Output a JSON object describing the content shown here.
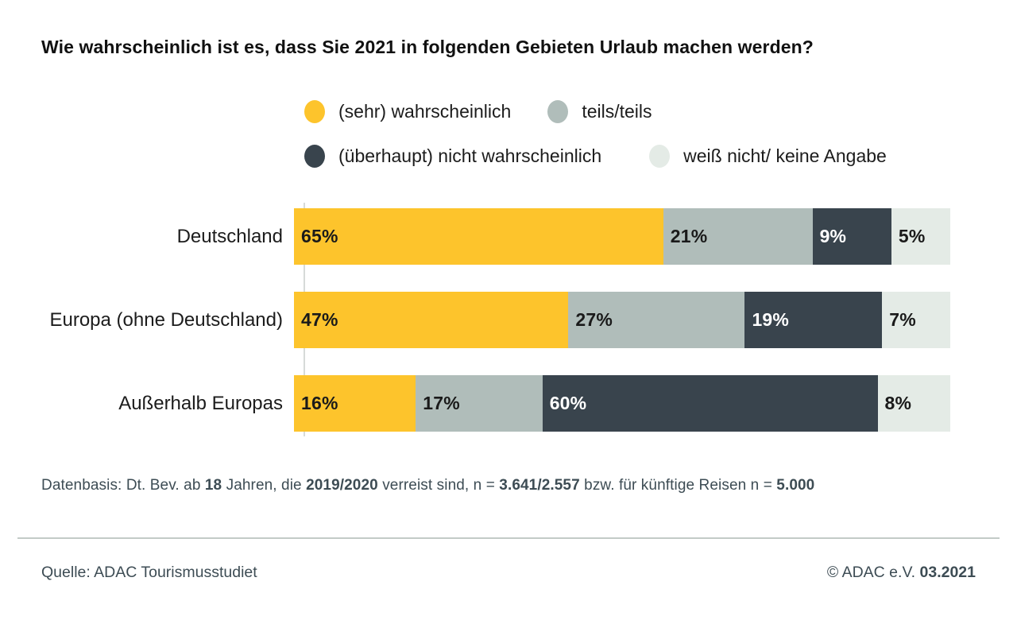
{
  "title": "Wie wahrscheinlich ist es, dass Sie 2021 in folgenden Gebieten Urlaub machen werden?",
  "colors": {
    "yellow": "#fdc42c",
    "gray": "#b0bdba",
    "dark": "#39444d",
    "light": "#e4ebe6",
    "axis": "#d7dbd9",
    "divider": "#c3cbc7",
    "footer_text": "#3d4c54"
  },
  "legend": {
    "rows": [
      [
        {
          "label": "(sehr) wahrscheinlich",
          "color_key": "yellow"
        },
        {
          "label": "teils/teils",
          "color_key": "gray"
        }
      ],
      [
        {
          "label": "(überhaupt) nicht wahrscheinlich",
          "color_key": "dark"
        },
        {
          "label": "weiß nicht/ keine Angabe",
          "color_key": "light"
        }
      ]
    ]
  },
  "chart_data": {
    "type": "bar",
    "orientation": "horizontal",
    "stacked": true,
    "title": "Wie wahrscheinlich ist es, dass Sie 2021 in folgenden Gebieten Urlaub machen werden?",
    "categories": [
      "Deutschland",
      "Europa (ohne Deutschland)",
      "Außerhalb Europas"
    ],
    "series": [
      {
        "name": "(sehr) wahrscheinlich",
        "color": "#fdc42c",
        "text_color": "#1a1a1a",
        "values": [
          65,
          47,
          16
        ]
      },
      {
        "name": "teils/teils",
        "color": "#b0bdba",
        "text_color": "#1a1a1a",
        "values": [
          21,
          27,
          17
        ]
      },
      {
        "name": "(überhaupt) nicht wahrscheinlich",
        "color": "#39444d",
        "text_color": "#ffffff",
        "values": [
          9,
          19,
          60
        ]
      },
      {
        "name": "weiß nicht/ keine Angabe",
        "color": "#e4ebe6",
        "text_color": "#1a1a1a",
        "values": [
          5,
          7,
          8
        ]
      }
    ],
    "value_suffix": "%",
    "xlim": [
      0,
      100
    ],
    "grid": false,
    "legend_position": "top"
  },
  "footnote": {
    "segments": [
      {
        "text": "Datenbasis: Dt. Bev. ab ",
        "bold": false
      },
      {
        "text": "18",
        "bold": true
      },
      {
        "text": " Jahren, die ",
        "bold": false
      },
      {
        "text": "2019/2020",
        "bold": true
      },
      {
        "text": " verreist sind, n = ",
        "bold": false
      },
      {
        "text": "3.641/2.557",
        "bold": true
      },
      {
        "text": " bzw. für künftige Reisen n = ",
        "bold": false
      },
      {
        "text": "5.000",
        "bold": true
      }
    ]
  },
  "footer": {
    "source": "Quelle: ADAC Tourismusstudiet",
    "copyright_prefix": "© ADAC e.V. ",
    "copyright_date": "03.2021"
  }
}
